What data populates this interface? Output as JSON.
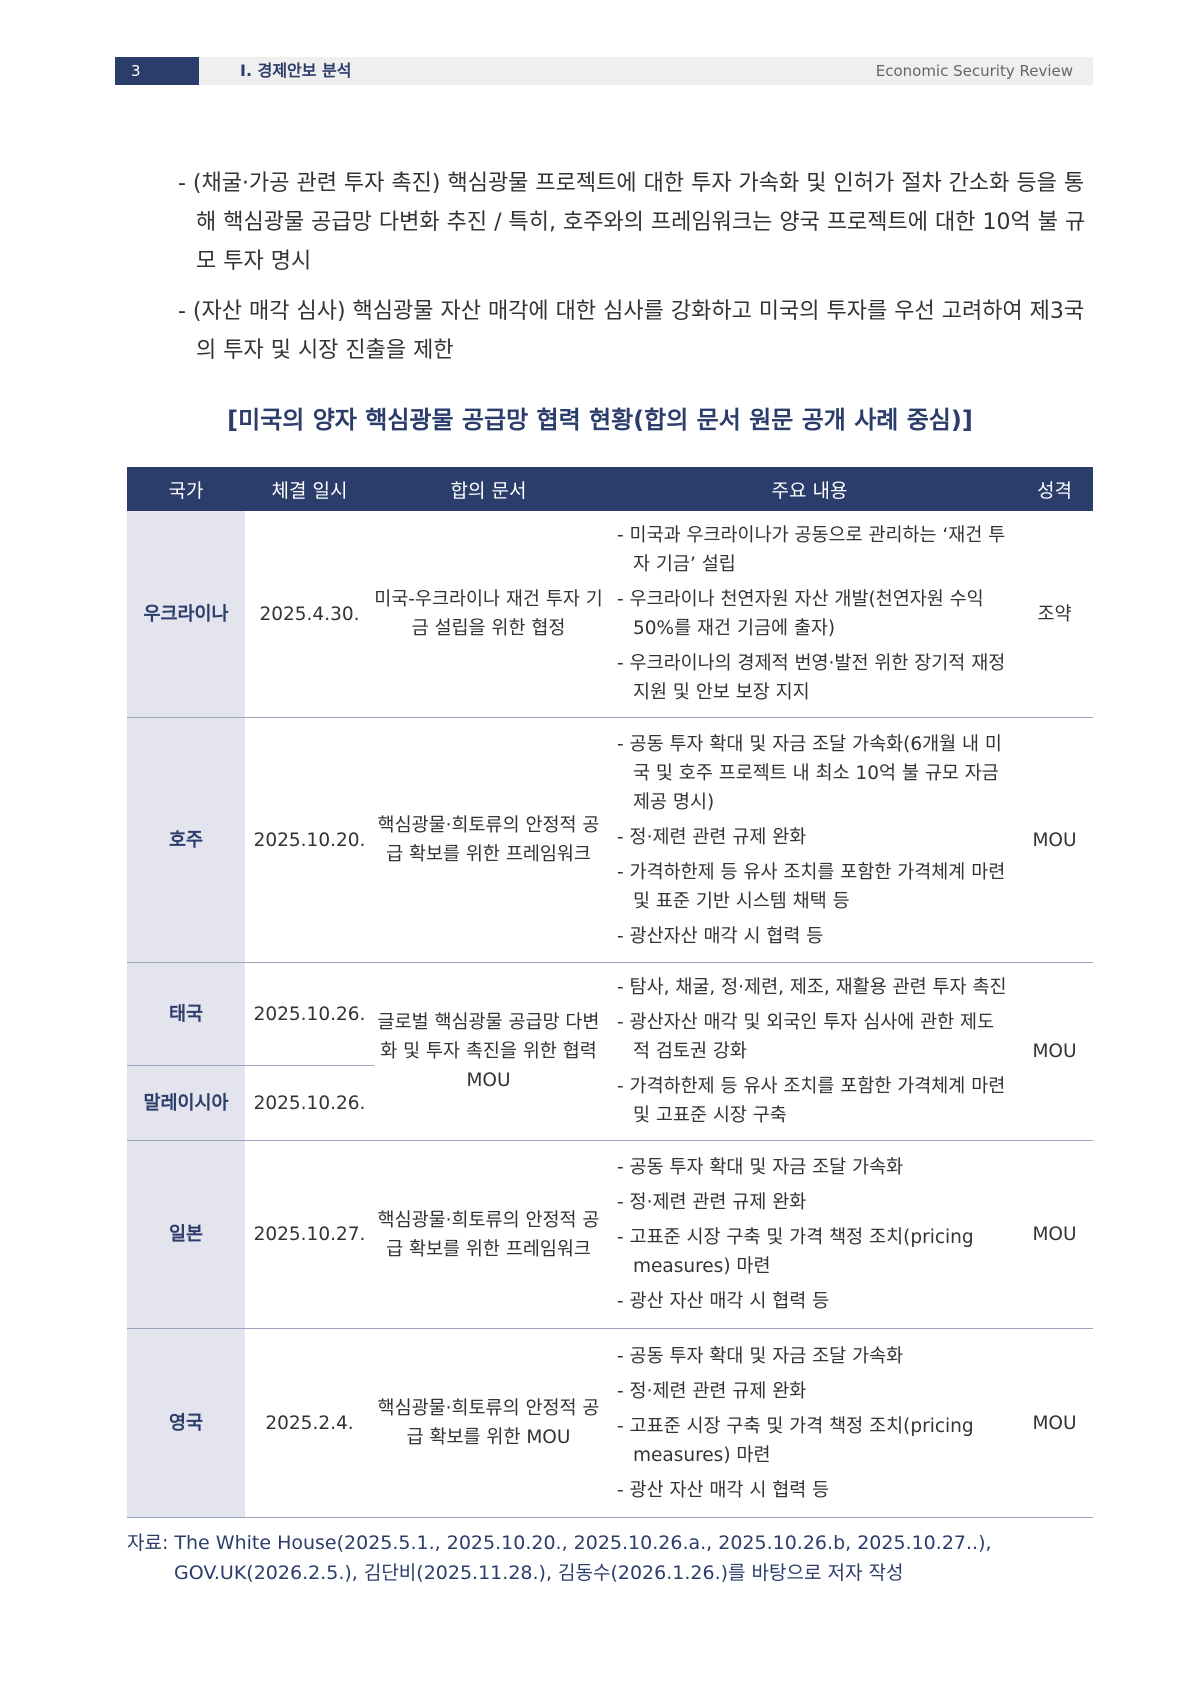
{
  "header": {
    "page": "3",
    "section": "Ⅰ. 경제안보 분석",
    "publication": "Economic Security Review"
  },
  "body": [
    "- (채굴·가공 관련 투자 촉진) 핵심광물 프로젝트에 대한 투자 가속화 및 인허가 절차 간소화 등을 통해 핵심광물 공급망 다변화 추진 / 특히, 호주와의 프레임워크는 양국 프로젝트에 대한 10억 불 규모 투자 명시",
    "- (자산 매각 심사) 핵심광물 자산 매각에 대한 심사를 강화하고 미국의 투자를 우선 고려하여 제3국의 투자 및 시장 진출을 제한"
  ],
  "table": {
    "caption": "[미국의 양자 핵심광물 공급망 협력 현황(합의 문서 원문 공개 사례 중심)]",
    "headers": [
      "국가",
      "체결 일시",
      "합의 문서",
      "주요 내용",
      "성격"
    ],
    "rows": [
      {
        "country": "우크라이나",
        "date": "2025.4.30.",
        "doc": "미국-우크라이나 재건 투자 기금 설립을 위한 협정",
        "items": [
          "- 미국과 우크라이나가 공동으로 관리하는 ‘재건 투자 기금’ 설립",
          "- 우크라이나 천연자원 자산 개발(천연자원 수익 50%를 재건 기금에 출자)",
          "- 우크라이나의 경제적 번영·발전 위한 장기적 재정 지원 및 안보 보장 지지"
        ],
        "type": "조약"
      },
      {
        "country": "호주",
        "date": "2025.10.20.",
        "doc": "핵심광물·희토류의 안정적 공급 확보를 위한 프레임워크",
        "items": [
          "- 공동 투자 확대 및 자금 조달 가속화(6개월 내 미국 및 호주 프로젝트 내 최소 10억 불 규모 자금 제공 명시)",
          "- 정·제련 관련 규제 완화",
          "- 가격하한제 등 유사 조치를 포함한 가격체계 마련 및 표준 기반 시스템 채택 등",
          "- 광산자산 매각 시 협력 등"
        ],
        "type": "MOU"
      },
      {
        "country": "태국",
        "date": "2025.10.26.",
        "country2": "말레이시아",
        "date2": "2025.10.26.",
        "doc": "글로벌 핵심광물 공급망 다변화 및 투자 촉진을 위한 협력 MOU",
        "items": [
          "- 탐사, 채굴, 정·제련, 제조, 재활용 관련 투자 촉진",
          "- 광산자산 매각 및 외국인 투자 심사에 관한 제도적 검토권 강화",
          "- 가격하한제 등 유사 조치를 포함한 가격체계 마련 및 고표준 시장 구축"
        ],
        "type": "MOU"
      },
      {
        "country": "일본",
        "date": "2025.10.27.",
        "doc": "핵심광물·희토류의 안정적 공급 확보를 위한 프레임워크",
        "items": [
          "- 공동 투자 확대 및 자금 조달 가속화",
          "- 정·제련 관련 규제 완화",
          "- 고표준 시장 구축 및 가격 책정 조치(pricing measures) 마련",
          "- 광산 자산 매각 시 협력 등"
        ],
        "type": "MOU"
      },
      {
        "country": "영국",
        "date": "2025.2.4.",
        "doc": "핵심광물·희토류의 안정적 공급 확보를 위한 MOU",
        "items": [
          "- 공동 투자 확대 및 자금 조달 가속화",
          "- 정·제련 관련 규제 완화",
          "- 고표준 시장 구축 및 가격 책정 조치(pricing measures) 마련",
          "- 광산 자산 매각 시 협력 등"
        ],
        "type": "MOU"
      }
    ]
  },
  "source": "자료: The White House(2025.5.1., 2025.10.20., 2025.10.26.a., 2025.10.26.b, 2025.10.27..), GOV.UK(2026.2.5.), 김단비(2025.11.28.), 김동수(2026.1.26.)를 바탕으로 저자 작성"
}
